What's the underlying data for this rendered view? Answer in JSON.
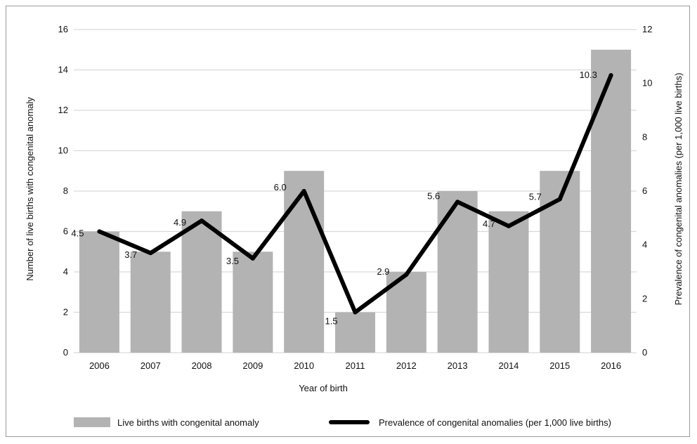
{
  "chart_data": {
    "type": "bar+line",
    "categories": [
      "2006",
      "2007",
      "2008",
      "2009",
      "2010",
      "2011",
      "2012",
      "2013",
      "2014",
      "2015",
      "2016"
    ],
    "series": [
      {
        "name": "Live births with congenital anomaly",
        "type": "bar",
        "axis": "left",
        "color": "#b3b3b3",
        "values": [
          6,
          5,
          7,
          5,
          9,
          2,
          4,
          8,
          7,
          9,
          15
        ]
      },
      {
        "name": "Prevalence of congenital anomalies (per 1,000 live births)",
        "type": "line",
        "axis": "right",
        "color": "#000000",
        "values": [
          4.5,
          3.7,
          4.9,
          3.5,
          6.0,
          1.5,
          2.9,
          5.6,
          4.7,
          5.7,
          10.3
        ],
        "labels": [
          "4.5",
          "3.7",
          "4.9",
          "3.5",
          "6.0",
          "1.5",
          "2.9",
          "5.6",
          "4.7",
          "5.7",
          "10.3"
        ]
      }
    ],
    "xlabel": "Year of birth",
    "ylabel": "Number of live births with congenital anomaly",
    "y2label": "Prevalence of congenital anomalies (per 1,000 live births)",
    "ylim": [
      0,
      16
    ],
    "yticks": [
      "0",
      "2",
      "4",
      "6",
      "8",
      "10",
      "12",
      "14",
      "16"
    ],
    "y2lim": [
      0,
      12
    ],
    "y2ticks": [
      "0",
      "2",
      "4",
      "6",
      "8",
      "10",
      "12"
    ],
    "grid": true,
    "legend": "bottom",
    "gridColor": "#d9d9d9"
  }
}
